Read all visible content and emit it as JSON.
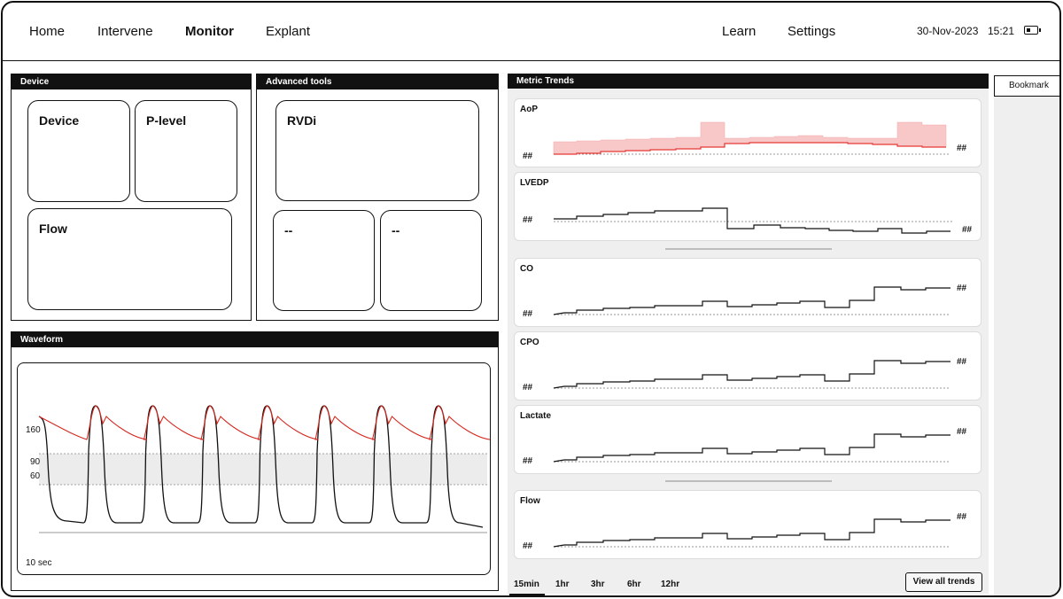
{
  "nav": {
    "left": [
      "Home",
      "Intervene",
      "Monitor",
      "Explant"
    ],
    "active": "Monitor",
    "right": [
      "Learn",
      "Settings"
    ],
    "date": "30-Nov-2023",
    "time": "15:21",
    "battery_icon": "battery-low-icon"
  },
  "device_panel": {
    "title": "Device",
    "tiles": [
      "Device",
      "P-level",
      "Flow"
    ]
  },
  "advanced_panel": {
    "title": "Advanced tools",
    "tiles": [
      "RVDi",
      "--",
      "--"
    ]
  },
  "waveform_panel": {
    "title": "Waveform",
    "y_labels": [
      "160",
      "90",
      "60"
    ],
    "time_label": "10 sec",
    "colors": {
      "pressure": "#d6291f",
      "lv": "#111111",
      "band": "#ececec"
    }
  },
  "trends_panel": {
    "title": "Metric Trends",
    "placeholder": "##",
    "metrics": [
      "AoP",
      "LVEDP",
      "CO",
      "CPO",
      "Lactate",
      "Flow"
    ],
    "ranges": [
      "15min",
      "1hr",
      "3hr",
      "6hr",
      "12hr"
    ],
    "active_range": "15min",
    "view_all": "View all trends",
    "aop_color": "#e53935",
    "aop_fill": "#f8c7c7"
  },
  "bookmark": "Bookmark"
}
